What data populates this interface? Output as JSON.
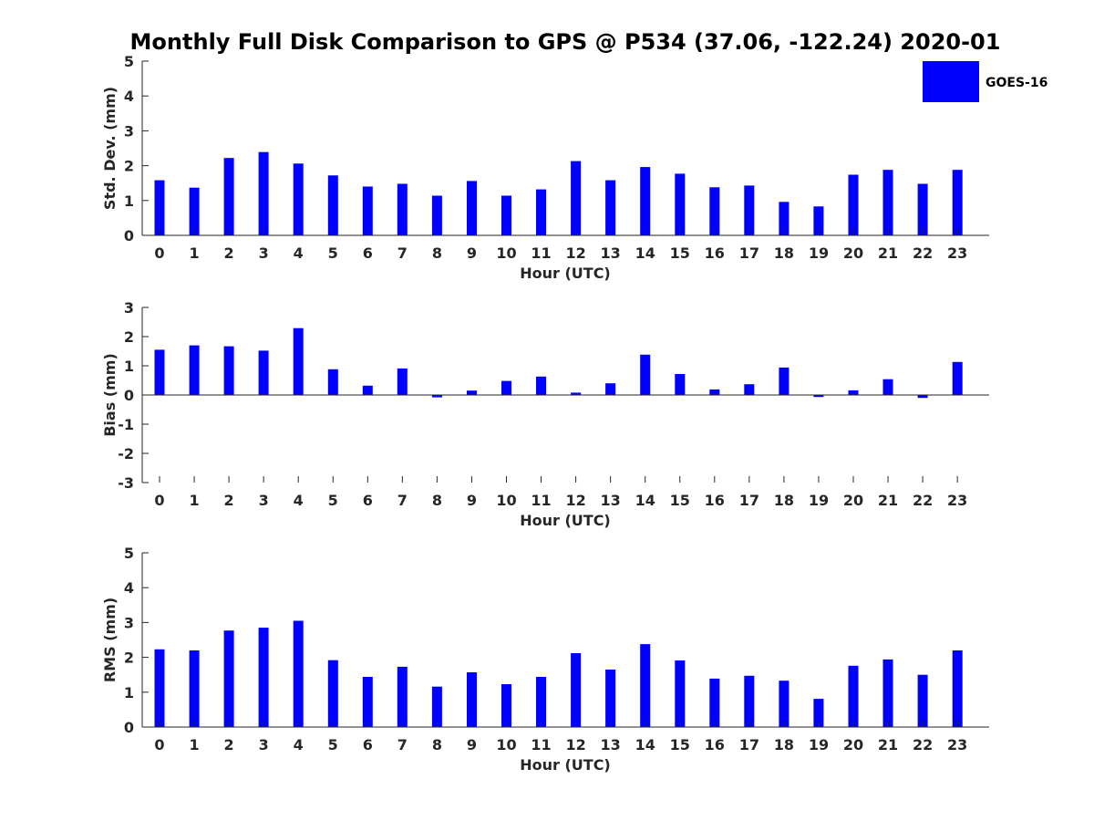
{
  "title": "Monthly Full Disk Comparison to GPS @ P534 (37.06, -122.24) 2020-01",
  "legend": {
    "label": "GOES-16",
    "color": "#0000ff",
    "placement": "top-right"
  },
  "chart_data": [
    {
      "type": "bar",
      "xlabel": "Hour (UTC)",
      "ylabel": "Std. Dev. (mm)",
      "ylim": [
        0,
        5
      ],
      "yticks": [
        "0",
        "1",
        "2",
        "3",
        "4",
        "5"
      ],
      "categories": [
        "0",
        "1",
        "2",
        "3",
        "4",
        "5",
        "6",
        "7",
        "8",
        "9",
        "10",
        "11",
        "12",
        "13",
        "14",
        "15",
        "16",
        "17",
        "18",
        "19",
        "20",
        "21",
        "22",
        "23"
      ],
      "series": [
        {
          "name": "GOES-16",
          "color": "#0000ff",
          "values": [
            1.58,
            1.37,
            2.22,
            2.39,
            2.06,
            1.72,
            1.4,
            1.48,
            1.14,
            1.56,
            1.14,
            1.32,
            2.13,
            1.58,
            1.96,
            1.77,
            1.38,
            1.43,
            0.96,
            0.83,
            1.74,
            1.88,
            1.48,
            1.88
          ]
        }
      ]
    },
    {
      "type": "bar",
      "xlabel": "Hour (UTC)",
      "ylabel": "Bias (mm)",
      "ylim": [
        -3,
        3
      ],
      "yticks": [
        "-3",
        "-2",
        "-1",
        "0",
        "1",
        "2",
        "3"
      ],
      "categories": [
        "0",
        "1",
        "2",
        "3",
        "4",
        "5",
        "6",
        "7",
        "8",
        "9",
        "10",
        "11",
        "12",
        "13",
        "14",
        "15",
        "16",
        "17",
        "18",
        "19",
        "20",
        "21",
        "22",
        "23"
      ],
      "series": [
        {
          "name": "GOES-16",
          "color": "#0000ff",
          "values": [
            1.55,
            1.7,
            1.67,
            1.52,
            2.29,
            0.88,
            0.32,
            0.91,
            -0.08,
            0.15,
            0.48,
            0.63,
            0.08,
            0.4,
            1.38,
            0.72,
            0.19,
            0.37,
            0.94,
            -0.07,
            0.16,
            0.54,
            -0.1,
            1.13
          ]
        }
      ]
    },
    {
      "type": "bar",
      "xlabel": "Hour (UTC)",
      "ylabel": "RMS (mm)",
      "ylim": [
        0,
        5
      ],
      "yticks": [
        "0",
        "1",
        "2",
        "3",
        "4",
        "5"
      ],
      "categories": [
        "0",
        "1",
        "2",
        "3",
        "4",
        "5",
        "6",
        "7",
        "8",
        "9",
        "10",
        "11",
        "12",
        "13",
        "14",
        "15",
        "16",
        "17",
        "18",
        "19",
        "20",
        "21",
        "22",
        "23"
      ],
      "series": [
        {
          "name": "GOES-16",
          "color": "#0000ff",
          "values": [
            2.23,
            2.2,
            2.77,
            2.85,
            3.05,
            1.92,
            1.44,
            1.73,
            1.16,
            1.57,
            1.23,
            1.44,
            2.12,
            1.65,
            2.38,
            1.91,
            1.39,
            1.47,
            1.33,
            0.81,
            1.76,
            1.94,
            1.5,
            2.2
          ]
        }
      ]
    }
  ]
}
